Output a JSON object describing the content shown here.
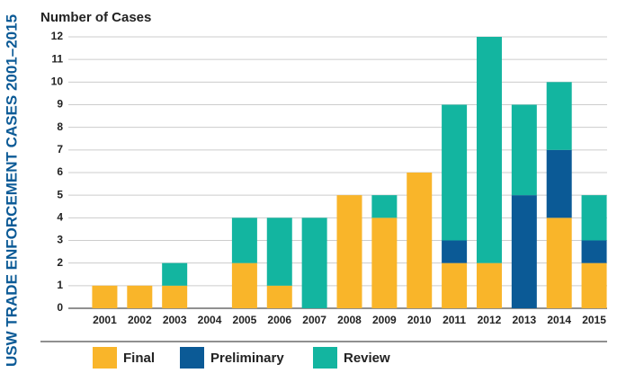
{
  "chart_data": {
    "type": "stacked_bar",
    "title": "USW TRADE ENFORCEMENT CASES 2001–2015",
    "y_label": "Number of Cases",
    "categories": [
      "2001",
      "2002",
      "2003",
      "2004",
      "2005",
      "2006",
      "2007",
      "2008",
      "2009",
      "2010",
      "2011",
      "2012",
      "2013",
      "2014",
      "2015"
    ],
    "series": [
      {
        "name": "Final",
        "color": "#f9b52a",
        "values": [
          1,
          1,
          1,
          0,
          2,
          1,
          0,
          5,
          4,
          6,
          2,
          2,
          0,
          4,
          2
        ]
      },
      {
        "name": "Preliminary",
        "color": "#0b5a96",
        "values": [
          0,
          0,
          0,
          0,
          0,
          0,
          0,
          0,
          0,
          0,
          1,
          0,
          5,
          3,
          1
        ]
      },
      {
        "name": "Review",
        "color": "#13b5a0",
        "values": [
          0,
          0,
          1,
          0,
          2,
          3,
          4,
          0,
          1,
          0,
          6,
          10,
          4,
          3,
          2
        ]
      }
    ],
    "ylim": [
      0,
      12
    ],
    "yticks": [
      0,
      1,
      2,
      3,
      4,
      5,
      6,
      7,
      8,
      9,
      10,
      11,
      12
    ],
    "grid": true
  }
}
